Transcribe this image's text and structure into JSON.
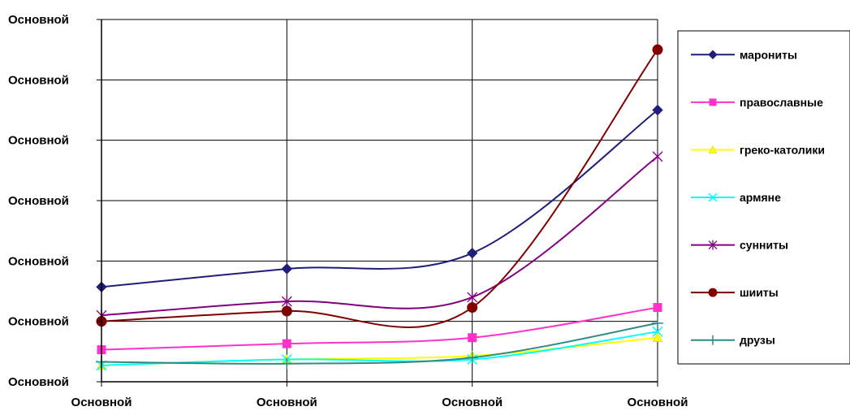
{
  "chart_data": {
    "type": "line",
    "title": "",
    "xlabel": "",
    "ylabel": "",
    "categories": [
      "Основной",
      "Основной",
      "Основной",
      "Основной"
    ],
    "y_tick_labels": [
      "Основной",
      "Основной",
      "Основной",
      "Основной",
      "Основной",
      "Основной",
      "Основной"
    ],
    "ylim": [
      0,
      6
    ],
    "grid": true,
    "legend_position": "right",
    "smooth": true,
    "series": [
      {
        "name": "марониты",
        "color": "#1f1f7a",
        "marker": "diamond",
        "values": [
          1.57,
          1.87,
          2.13,
          4.5
        ]
      },
      {
        "name": "православные",
        "color": "#ff33cc",
        "marker": "square",
        "values": [
          0.53,
          0.63,
          0.73,
          1.23
        ]
      },
      {
        "name": "греко-католики",
        "color": "#ffff00",
        "marker": "triangle",
        "values": [
          0.27,
          0.37,
          0.43,
          0.73
        ]
      },
      {
        "name": "армяне",
        "color": "#00ffff",
        "marker": "x",
        "values": [
          0.27,
          0.37,
          0.37,
          0.83
        ]
      },
      {
        "name": "сунниты",
        "color": "#800080",
        "marker": "star",
        "values": [
          1.1,
          1.33,
          1.4,
          3.73
        ]
      },
      {
        "name": "шииты",
        "color": "#800000",
        "marker": "circle",
        "values": [
          1.0,
          1.17,
          1.23,
          5.5
        ]
      },
      {
        "name": "друзы",
        "color": "#2e8b80",
        "marker": "plus",
        "values": [
          0.33,
          0.3,
          0.4,
          0.97
        ]
      }
    ]
  }
}
